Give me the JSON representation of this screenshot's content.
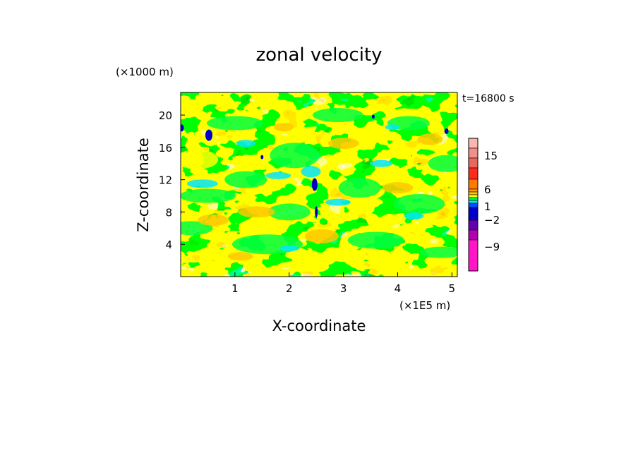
{
  "chart_data": {
    "type": "heatmap",
    "title": "zonal velocity",
    "xlabel": "X-coordinate",
    "ylabel": "Z-coordinate",
    "x_unit": "(×1E5 m)",
    "y_unit": "(×1000 m)",
    "time_label": "t=16800 s",
    "xlim": [
      0,
      5.1
    ],
    "ylim": [
      0,
      22.8
    ],
    "xticks": [
      1,
      2,
      3,
      4,
      5
    ],
    "yticks": [
      4,
      8,
      12,
      16,
      20
    ],
    "xtick_labels": [
      "1",
      "2",
      "3",
      "4",
      "5"
    ],
    "ytick_labels": [
      "4",
      "8",
      "12",
      "16",
      "20"
    ],
    "colorbar": {
      "levels": [
        {
          "value": 15,
          "color": "#f8b8b0"
        },
        {
          "value": 12,
          "color": "#f09088"
        },
        {
          "value": 9,
          "color": "#e86860"
        },
        {
          "value": 6,
          "color": "#ff2a1e"
        },
        {
          "value": 3,
          "color": "#ff7800"
        },
        {
          "value": 2,
          "color": "#ffa000"
        },
        {
          "value": 1,
          "color": "#ffc800"
        },
        {
          "value": 0,
          "color": "#ffff00"
        },
        {
          "value": -1,
          "color": "#00ff40"
        },
        {
          "value": -2,
          "color": "#00e6ff"
        },
        {
          "value": -3,
          "color": "#0050ff"
        },
        {
          "value": -6,
          "color": "#0000c8"
        },
        {
          "value": -9,
          "color": "#6400b4"
        },
        {
          "value": -12,
          "color": "#b400b4"
        },
        {
          "value": -15,
          "color": "#ff14c8"
        }
      ],
      "tick_labels": [
        "15",
        "6",
        "1",
        "−2",
        "−9"
      ]
    },
    "grid": false
  }
}
